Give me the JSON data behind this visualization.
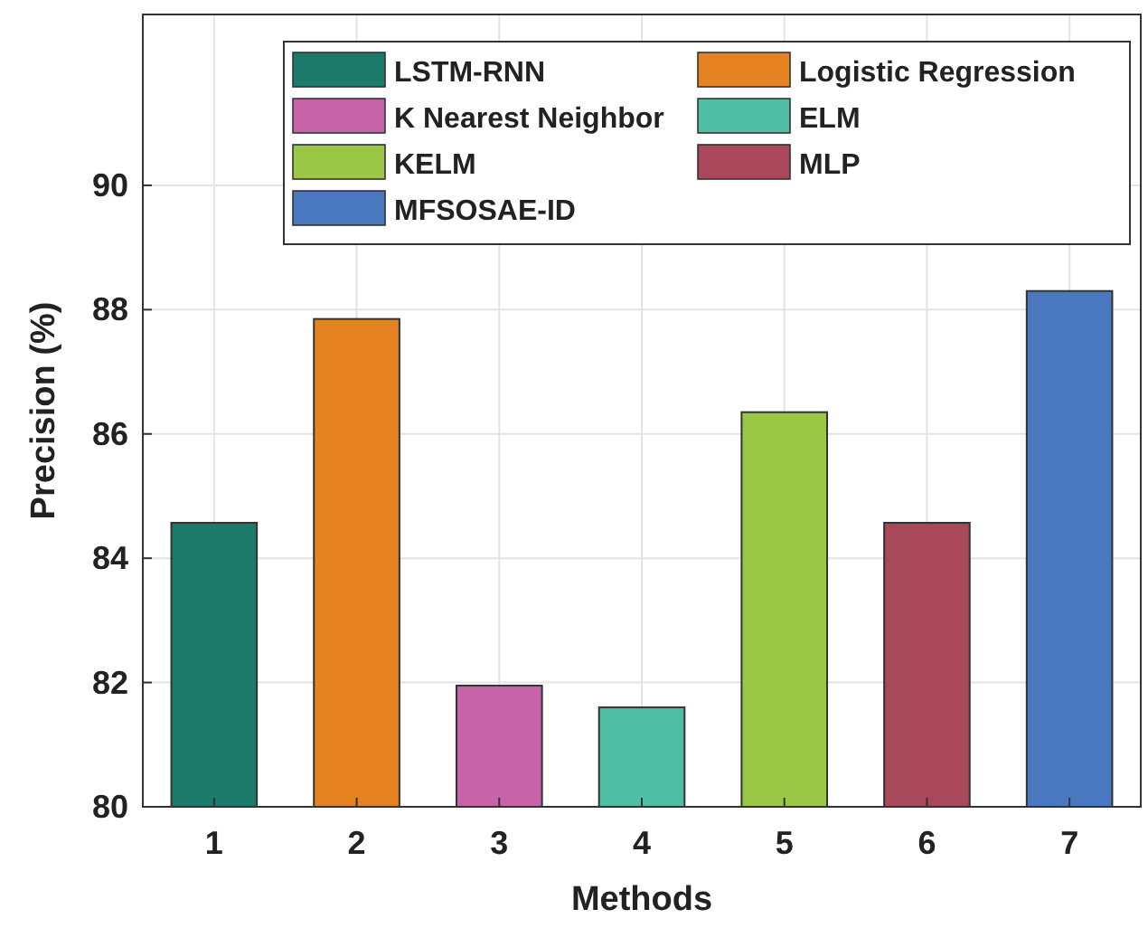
{
  "chart_data": {
    "type": "bar",
    "xlabel": "Methods",
    "ylabel": "Precision (%)",
    "categories": [
      "1",
      "2",
      "3",
      "4",
      "5",
      "6",
      "7"
    ],
    "series": [
      {
        "name": "LSTM-RNN",
        "color": "#1c7a6a",
        "values": [
          84.57,
          null,
          null,
          null,
          null,
          null,
          null
        ]
      },
      {
        "name": "Logistic Regression",
        "color": "#e58322",
        "values": [
          null,
          87.85,
          null,
          null,
          null,
          null,
          null
        ]
      },
      {
        "name": "K Nearest Neighbor",
        "color": "#c763a8",
        "values": [
          null,
          null,
          81.95,
          null,
          null,
          null,
          null
        ]
      },
      {
        "name": "ELM",
        "color": "#4fbfa3",
        "values": [
          null,
          null,
          null,
          81.6,
          null,
          null,
          null
        ]
      },
      {
        "name": "KELM",
        "color": "#9bc746",
        "values": [
          null,
          null,
          null,
          null,
          86.35,
          null,
          null
        ]
      },
      {
        "name": "MLP",
        "color": "#a8485a",
        "values": [
          null,
          null,
          null,
          null,
          null,
          84.57,
          null
        ]
      },
      {
        "name": "MFSOSAE-ID",
        "color": "#4a78c0",
        "values": [
          null,
          null,
          null,
          null,
          null,
          null,
          88.3
        ]
      }
    ],
    "ylim": [
      80,
      92.75
    ],
    "yticks": [
      80,
      82,
      84,
      86,
      88,
      90
    ],
    "grid": true,
    "legend": "top right"
  }
}
